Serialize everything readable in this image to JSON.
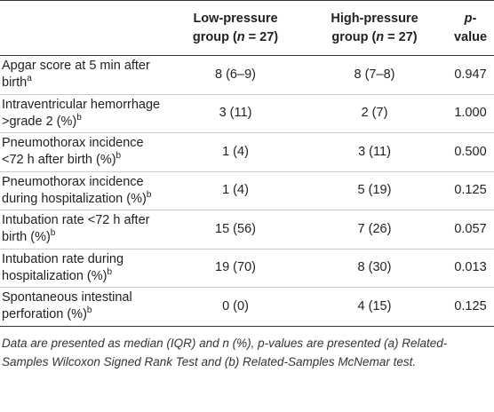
{
  "table": {
    "header": [
      [],
      [
        "Low-pressure",
        "group (",
        "n",
        " = 27)"
      ],
      [
        "High-pressure",
        "group (",
        "n",
        " = 27)"
      ],
      [
        "p",
        "-value"
      ]
    ],
    "rows": [
      {
        "label": "Apgar score at 5 min after birth",
        "note": "a",
        "cells": [
          "8 (6–9)",
          "8 (7–8)",
          "0.947"
        ]
      },
      {
        "label": "Intraventricular hemorrhage >grade 2 (%)",
        "note": "b",
        "cells": [
          "3 (11)",
          "2 (7)",
          "1.000"
        ]
      },
      {
        "label": "Pneumothorax incidence <72 h after birth (%)",
        "note": "b",
        "cells": [
          "1 (4)",
          "3 (11)",
          "0.500"
        ]
      },
      {
        "label": "Pneumothorax incidence during hospitalization (%)",
        "note": "b",
        "cells": [
          "1 (4)",
          "5 (19)",
          "0.125"
        ]
      },
      {
        "label": "Intubation rate <72 h after birth (%)",
        "note": "b",
        "cells": [
          "15 (56)",
          "7 (26)",
          "0.057"
        ]
      },
      {
        "label": "Intubation rate during hospitalization (%)",
        "note": "b",
        "cells": [
          "19 (70)",
          "8 (30)",
          "0.013"
        ]
      },
      {
        "label": "Spontaneous intestinal perforation (%)",
        "note": "b",
        "cells": [
          "0 (0)",
          "4 (15)",
          "0.125"
        ]
      }
    ],
    "footnote": "Data are presented as median (IQR) and n (%), p-values are presented (a) Related-Samples Wilcoxon Signed Rank Test and (b) Related-Samples McNemar test."
  }
}
